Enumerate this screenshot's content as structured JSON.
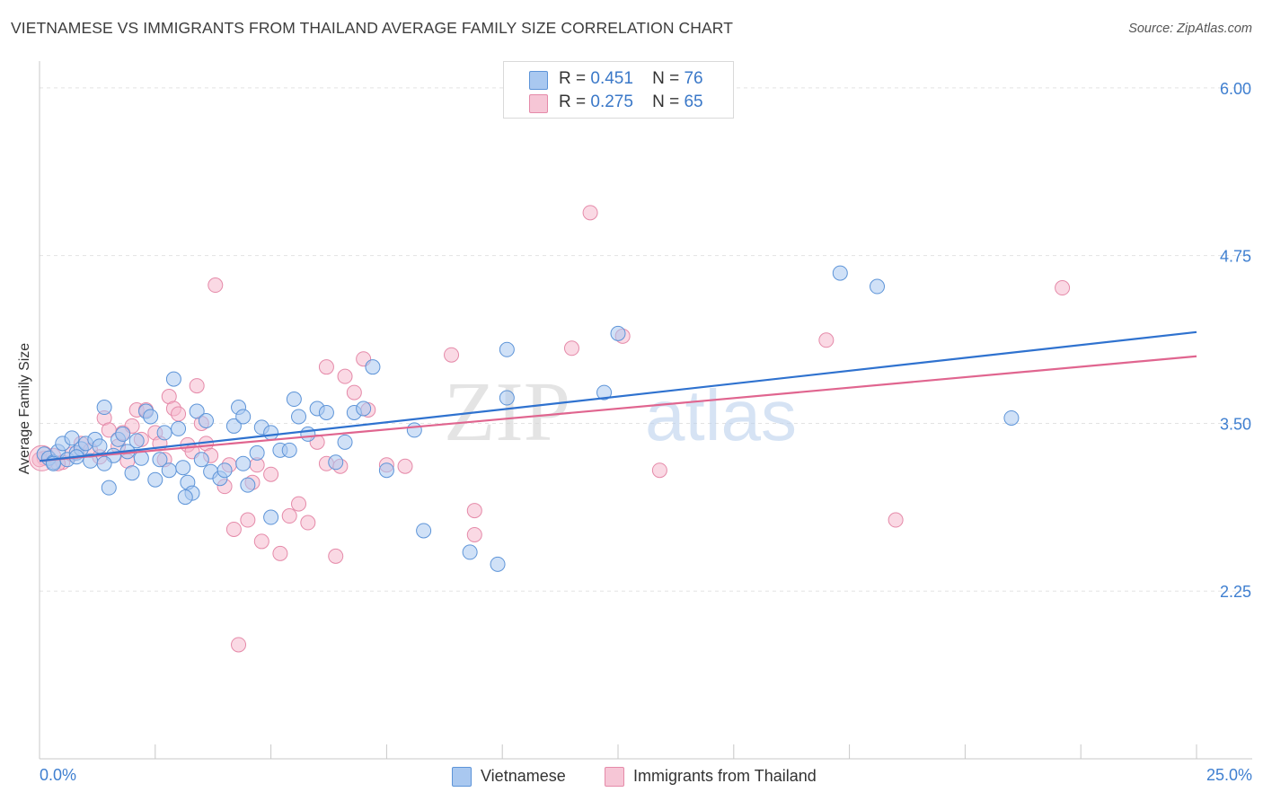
{
  "title": "VIETNAMESE VS IMMIGRANTS FROM THAILAND AVERAGE FAMILY SIZE CORRELATION CHART",
  "source": "Source: ZipAtlas.com",
  "watermark": {
    "zip": "ZIP",
    "atlas": "atlas"
  },
  "colors": {
    "blue_fill": "#a9c8f0",
    "blue_stroke": "#5d94d8",
    "blue_line": "#2f72cf",
    "pink_fill": "#f6b9cd",
    "pink_stroke": "#e58aa9",
    "pink_line": "#e0658f",
    "axis_label": "#3f7fd0",
    "grid": "#e3e3e3"
  },
  "legend_top": [
    {
      "r_label": "R =",
      "r_value": "0.451",
      "n_label": "N =",
      "n_value": "76",
      "series": "Vietnamese"
    },
    {
      "r_label": "R =",
      "r_value": "0.275",
      "n_label": "N =",
      "n_value": "65",
      "series": "Immigrants from Thailand"
    }
  ],
  "legend_bottom": [
    "Vietnamese",
    "Immigrants from Thailand"
  ],
  "chart_data": {
    "type": "scatter",
    "xlabel": "",
    "ylabel": "Average Family Size",
    "x_tick_labels": [
      "0.0%",
      "25.0%"
    ],
    "y_tick_labels": [
      "6.00",
      "4.75",
      "3.50",
      "2.25"
    ],
    "xlim": [
      0,
      25
    ],
    "ylim": [
      1.0,
      6.2
    ],
    "y_ticks": [
      6.0,
      4.75,
      3.5,
      2.25
    ],
    "grid": true,
    "legend_placement": "top-center",
    "series": [
      {
        "name": "Vietnamese",
        "trend": [
          [
            0,
            3.22
          ],
          [
            25,
            4.18
          ]
        ],
        "points": [
          [
            0.1,
            3.27
          ],
          [
            0.2,
            3.24
          ],
          [
            0.3,
            3.21
          ],
          [
            0.4,
            3.29
          ],
          [
            0.5,
            3.35
          ],
          [
            0.6,
            3.23
          ],
          [
            0.7,
            3.39
          ],
          [
            0.8,
            3.28
          ],
          [
            0.9,
            3.31
          ],
          [
            1.0,
            3.35
          ],
          [
            1.1,
            3.22
          ],
          [
            1.2,
            3.38
          ],
          [
            1.3,
            3.33
          ],
          [
            1.4,
            3.62
          ],
          [
            1.5,
            3.02
          ],
          [
            1.6,
            3.26
          ],
          [
            1.7,
            3.38
          ],
          [
            1.8,
            3.42
          ],
          [
            1.9,
            3.29
          ],
          [
            2.0,
            3.13
          ],
          [
            2.1,
            3.37
          ],
          [
            2.2,
            3.24
          ],
          [
            2.3,
            3.59
          ],
          [
            2.4,
            3.55
          ],
          [
            2.5,
            3.08
          ],
          [
            2.6,
            3.23
          ],
          [
            2.7,
            3.43
          ],
          [
            2.8,
            3.15
          ],
          [
            2.9,
            3.83
          ],
          [
            3.0,
            3.46
          ],
          [
            3.1,
            3.17
          ],
          [
            3.2,
            3.06
          ],
          [
            3.3,
            2.98
          ],
          [
            3.4,
            3.59
          ],
          [
            3.5,
            3.23
          ],
          [
            3.6,
            3.52
          ],
          [
            3.7,
            3.14
          ],
          [
            3.9,
            3.09
          ],
          [
            4.0,
            3.15
          ],
          [
            4.2,
            3.48
          ],
          [
            4.3,
            3.62
          ],
          [
            4.4,
            3.55
          ],
          [
            4.5,
            3.04
          ],
          [
            4.7,
            3.28
          ],
          [
            4.8,
            3.47
          ],
          [
            5.0,
            3.43
          ],
          [
            5.2,
            3.3
          ],
          [
            5.4,
            3.3
          ],
          [
            5.5,
            3.68
          ],
          [
            5.6,
            3.55
          ],
          [
            5.8,
            3.42
          ],
          [
            6.0,
            3.61
          ],
          [
            6.2,
            3.58
          ],
          [
            6.4,
            3.21
          ],
          [
            6.6,
            3.36
          ],
          [
            6.8,
            3.58
          ],
          [
            7.0,
            3.61
          ],
          [
            7.2,
            3.92
          ],
          [
            7.5,
            3.15
          ],
          [
            3.15,
            2.95
          ],
          [
            4.4,
            3.2
          ],
          [
            5.0,
            2.8
          ],
          [
            8.1,
            3.45
          ],
          [
            8.3,
            2.7
          ],
          [
            9.3,
            2.54
          ],
          [
            9.9,
            2.45
          ],
          [
            10.1,
            4.05
          ],
          [
            10.1,
            3.69
          ],
          [
            12.2,
            3.73
          ],
          [
            12.5,
            4.17
          ],
          [
            17.3,
            4.62
          ],
          [
            18.1,
            4.52
          ],
          [
            21.0,
            3.54
          ],
          [
            0.3,
            3.2
          ],
          [
            0.8,
            3.25
          ],
          [
            1.4,
            3.2
          ]
        ]
      },
      {
        "name": "Immigrants from Thailand",
        "trend": [
          [
            0,
            3.22
          ],
          [
            25,
            4.0
          ]
        ],
        "points": [
          [
            0.1,
            3.24
          ],
          [
            0.3,
            3.26
          ],
          [
            0.5,
            3.21
          ],
          [
            0.7,
            3.27
          ],
          [
            0.9,
            3.35
          ],
          [
            1.1,
            3.3
          ],
          [
            1.3,
            3.25
          ],
          [
            1.4,
            3.54
          ],
          [
            1.5,
            3.45
          ],
          [
            1.7,
            3.33
          ],
          [
            1.8,
            3.43
          ],
          [
            1.9,
            3.22
          ],
          [
            2.0,
            3.48
          ],
          [
            2.1,
            3.6
          ],
          [
            2.2,
            3.38
          ],
          [
            2.3,
            3.6
          ],
          [
            2.5,
            3.43
          ],
          [
            2.6,
            3.35
          ],
          [
            2.7,
            3.23
          ],
          [
            2.8,
            3.7
          ],
          [
            2.9,
            3.61
          ],
          [
            3.0,
            3.57
          ],
          [
            3.2,
            3.34
          ],
          [
            3.3,
            3.29
          ],
          [
            3.4,
            3.78
          ],
          [
            3.5,
            3.5
          ],
          [
            3.6,
            3.35
          ],
          [
            3.7,
            3.26
          ],
          [
            3.8,
            4.53
          ],
          [
            4.0,
            3.03
          ],
          [
            4.1,
            3.19
          ],
          [
            4.2,
            2.71
          ],
          [
            4.3,
            1.85
          ],
          [
            4.5,
            2.78
          ],
          [
            4.6,
            3.06
          ],
          [
            4.7,
            3.19
          ],
          [
            4.8,
            2.62
          ],
          [
            5.0,
            3.12
          ],
          [
            5.2,
            2.53
          ],
          [
            5.4,
            2.81
          ],
          [
            5.6,
            2.9
          ],
          [
            5.8,
            2.76
          ],
          [
            6.0,
            3.36
          ],
          [
            6.2,
            3.92
          ],
          [
            6.4,
            2.51
          ],
          [
            6.6,
            3.85
          ],
          [
            6.8,
            3.73
          ],
          [
            7.0,
            3.98
          ],
          [
            7.1,
            3.6
          ],
          [
            7.5,
            3.19
          ],
          [
            7.9,
            3.18
          ],
          [
            8.9,
            4.01
          ],
          [
            9.4,
            2.85
          ],
          [
            9.4,
            2.67
          ],
          [
            11.5,
            4.06
          ],
          [
            11.9,
            5.07
          ],
          [
            12.6,
            4.15
          ],
          [
            13.4,
            3.15
          ],
          [
            17.0,
            4.12
          ],
          [
            18.5,
            2.78
          ],
          [
            22.1,
            4.51
          ],
          [
            0.4,
            3.2
          ],
          [
            6.2,
            3.2
          ],
          [
            6.5,
            3.18
          ],
          [
            0.0,
            3.23
          ]
        ]
      }
    ]
  }
}
